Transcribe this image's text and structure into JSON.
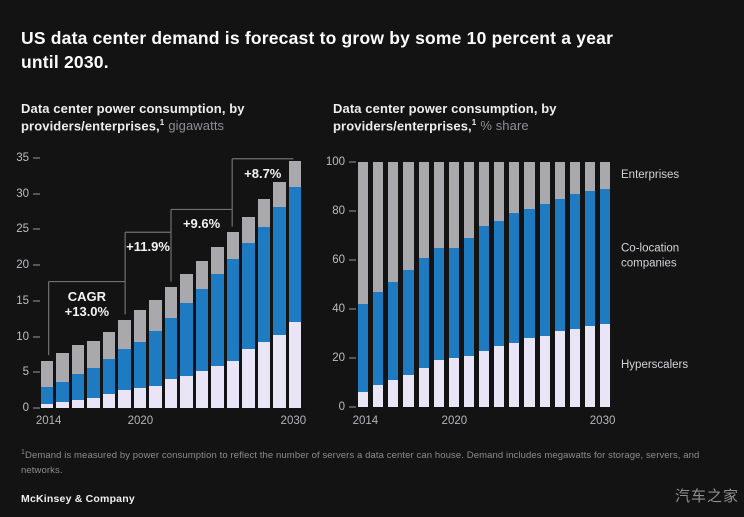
{
  "header": {
    "title_line1": "US data center demand is forecast to grow by some 10 percent a year",
    "title_line2": "until 2030."
  },
  "colors": {
    "background": "#131313",
    "hyperscalers": "#e9e5f6",
    "colocation": "#1e7bc2",
    "enterprises": "#a9a8ad",
    "bracket_line": "#707070",
    "axis_text": "#bdbcc4",
    "title_text": "#fbfbfb",
    "footnote_text": "#8c8c8c"
  },
  "chart_data": [
    {
      "type": "bar",
      "stacked": true,
      "subtitle_line1": "Data center power consumption, by",
      "subtitle_line2_bold": "providers/enterprises,",
      "subtitle_sup": "1",
      "subtitle_unit": "gigawatts",
      "categories": [
        "2014",
        "2015",
        "2016",
        "2017",
        "2018",
        "2019",
        "2020",
        "2021",
        "2022",
        "2023",
        "2024",
        "2025",
        "2026",
        "2027",
        "2028",
        "2029",
        "2030"
      ],
      "xticks_shown": [
        {
          "index": 0,
          "label": "2014"
        },
        {
          "index": 6,
          "label": "2020"
        },
        {
          "index": 16,
          "label": "2030"
        }
      ],
      "ylim": [
        0,
        35
      ],
      "yticks": [
        0,
        5,
        10,
        15,
        20,
        25,
        30,
        35
      ],
      "grid": false,
      "series": [
        {
          "name": "Hyperscalers",
          "color": "#e9e5f6",
          "values": [
            0.5,
            0.8,
            1.1,
            1.4,
            2.0,
            2.5,
            2.8,
            3.1,
            4.0,
            4.5,
            5.2,
            5.9,
            6.6,
            8.3,
            9.3,
            10.2,
            12.0
          ]
        },
        {
          "name": "Co-location companies",
          "color": "#1e7bc2",
          "values": [
            2.5,
            2.9,
            3.7,
            4.2,
            4.9,
            5.8,
            6.5,
            7.7,
            8.6,
            10.2,
            11.5,
            12.8,
            14.3,
            14.8,
            16.1,
            17.9,
            18.9
          ]
        },
        {
          "name": "Enterprises",
          "color": "#a9a8ad",
          "values": [
            3.6,
            4.0,
            4.0,
            3.8,
            3.7,
            4.0,
            4.4,
            4.3,
            4.3,
            4.0,
            3.9,
            3.9,
            3.7,
            3.6,
            3.8,
            3.5,
            3.7
          ]
        }
      ],
      "annotations": [
        {
          "lines": [
            "CAGR",
            "+13.0%"
          ],
          "from_index": 0,
          "to_index": 5,
          "line_value": 17.7
        },
        {
          "lines": [
            "+11.9%"
          ],
          "from_index": 5,
          "to_index": 8,
          "line_value": 24.6
        },
        {
          "lines": [
            "+9.6%"
          ],
          "from_index": 8,
          "to_index": 12,
          "line_value": 27.8
        },
        {
          "lines": [
            "+8.7%"
          ],
          "from_index": 12,
          "to_index": 16,
          "line_value": 34.9
        }
      ]
    },
    {
      "type": "bar",
      "stacked": true,
      "subtitle_line1": "Data center power consumption, by",
      "subtitle_line2_bold": "providers/enterprises,",
      "subtitle_sup": "1",
      "subtitle_unit": "% share",
      "categories": [
        "2014",
        "2015",
        "2016",
        "2017",
        "2018",
        "2019",
        "2020",
        "2021",
        "2022",
        "2023",
        "2024",
        "2025",
        "2026",
        "2027",
        "2028",
        "2029",
        "2030"
      ],
      "xticks_shown": [
        {
          "index": 0,
          "label": "2014"
        },
        {
          "index": 6,
          "label": "2020"
        },
        {
          "index": 16,
          "label": "2030"
        }
      ],
      "ylim": [
        0,
        100
      ],
      "yticks": [
        0,
        20,
        40,
        60,
        80,
        100
      ],
      "grid": false,
      "legend_position": "right",
      "series": [
        {
          "name": "Hyperscalers",
          "color": "#e9e5f6",
          "values": [
            6,
            9,
            11,
            13,
            16,
            19,
            20,
            21,
            23,
            25,
            26,
            28,
            29,
            31,
            32,
            33,
            34
          ]
        },
        {
          "name": "Co-location companies",
          "color": "#1e7bc2",
          "values": [
            36,
            38,
            40,
            43,
            45,
            46,
            45,
            48,
            51,
            51,
            53,
            53,
            54,
            54,
            55,
            55,
            55
          ]
        },
        {
          "name": "Enterprises",
          "color": "#a9a8ad",
          "values": [
            58,
            53,
            49,
            44,
            39,
            35,
            35,
            31,
            26,
            24,
            21,
            19,
            17,
            15,
            13,
            12,
            11
          ]
        }
      ]
    }
  ],
  "footnote": {
    "sup": "1",
    "text": "Demand is measured by power consumption to reflect the number of servers a data center can house. Demand includes megawatts for storage, servers, and networks."
  },
  "brand": "McKinsey & Company",
  "watermark": "汽车之家"
}
